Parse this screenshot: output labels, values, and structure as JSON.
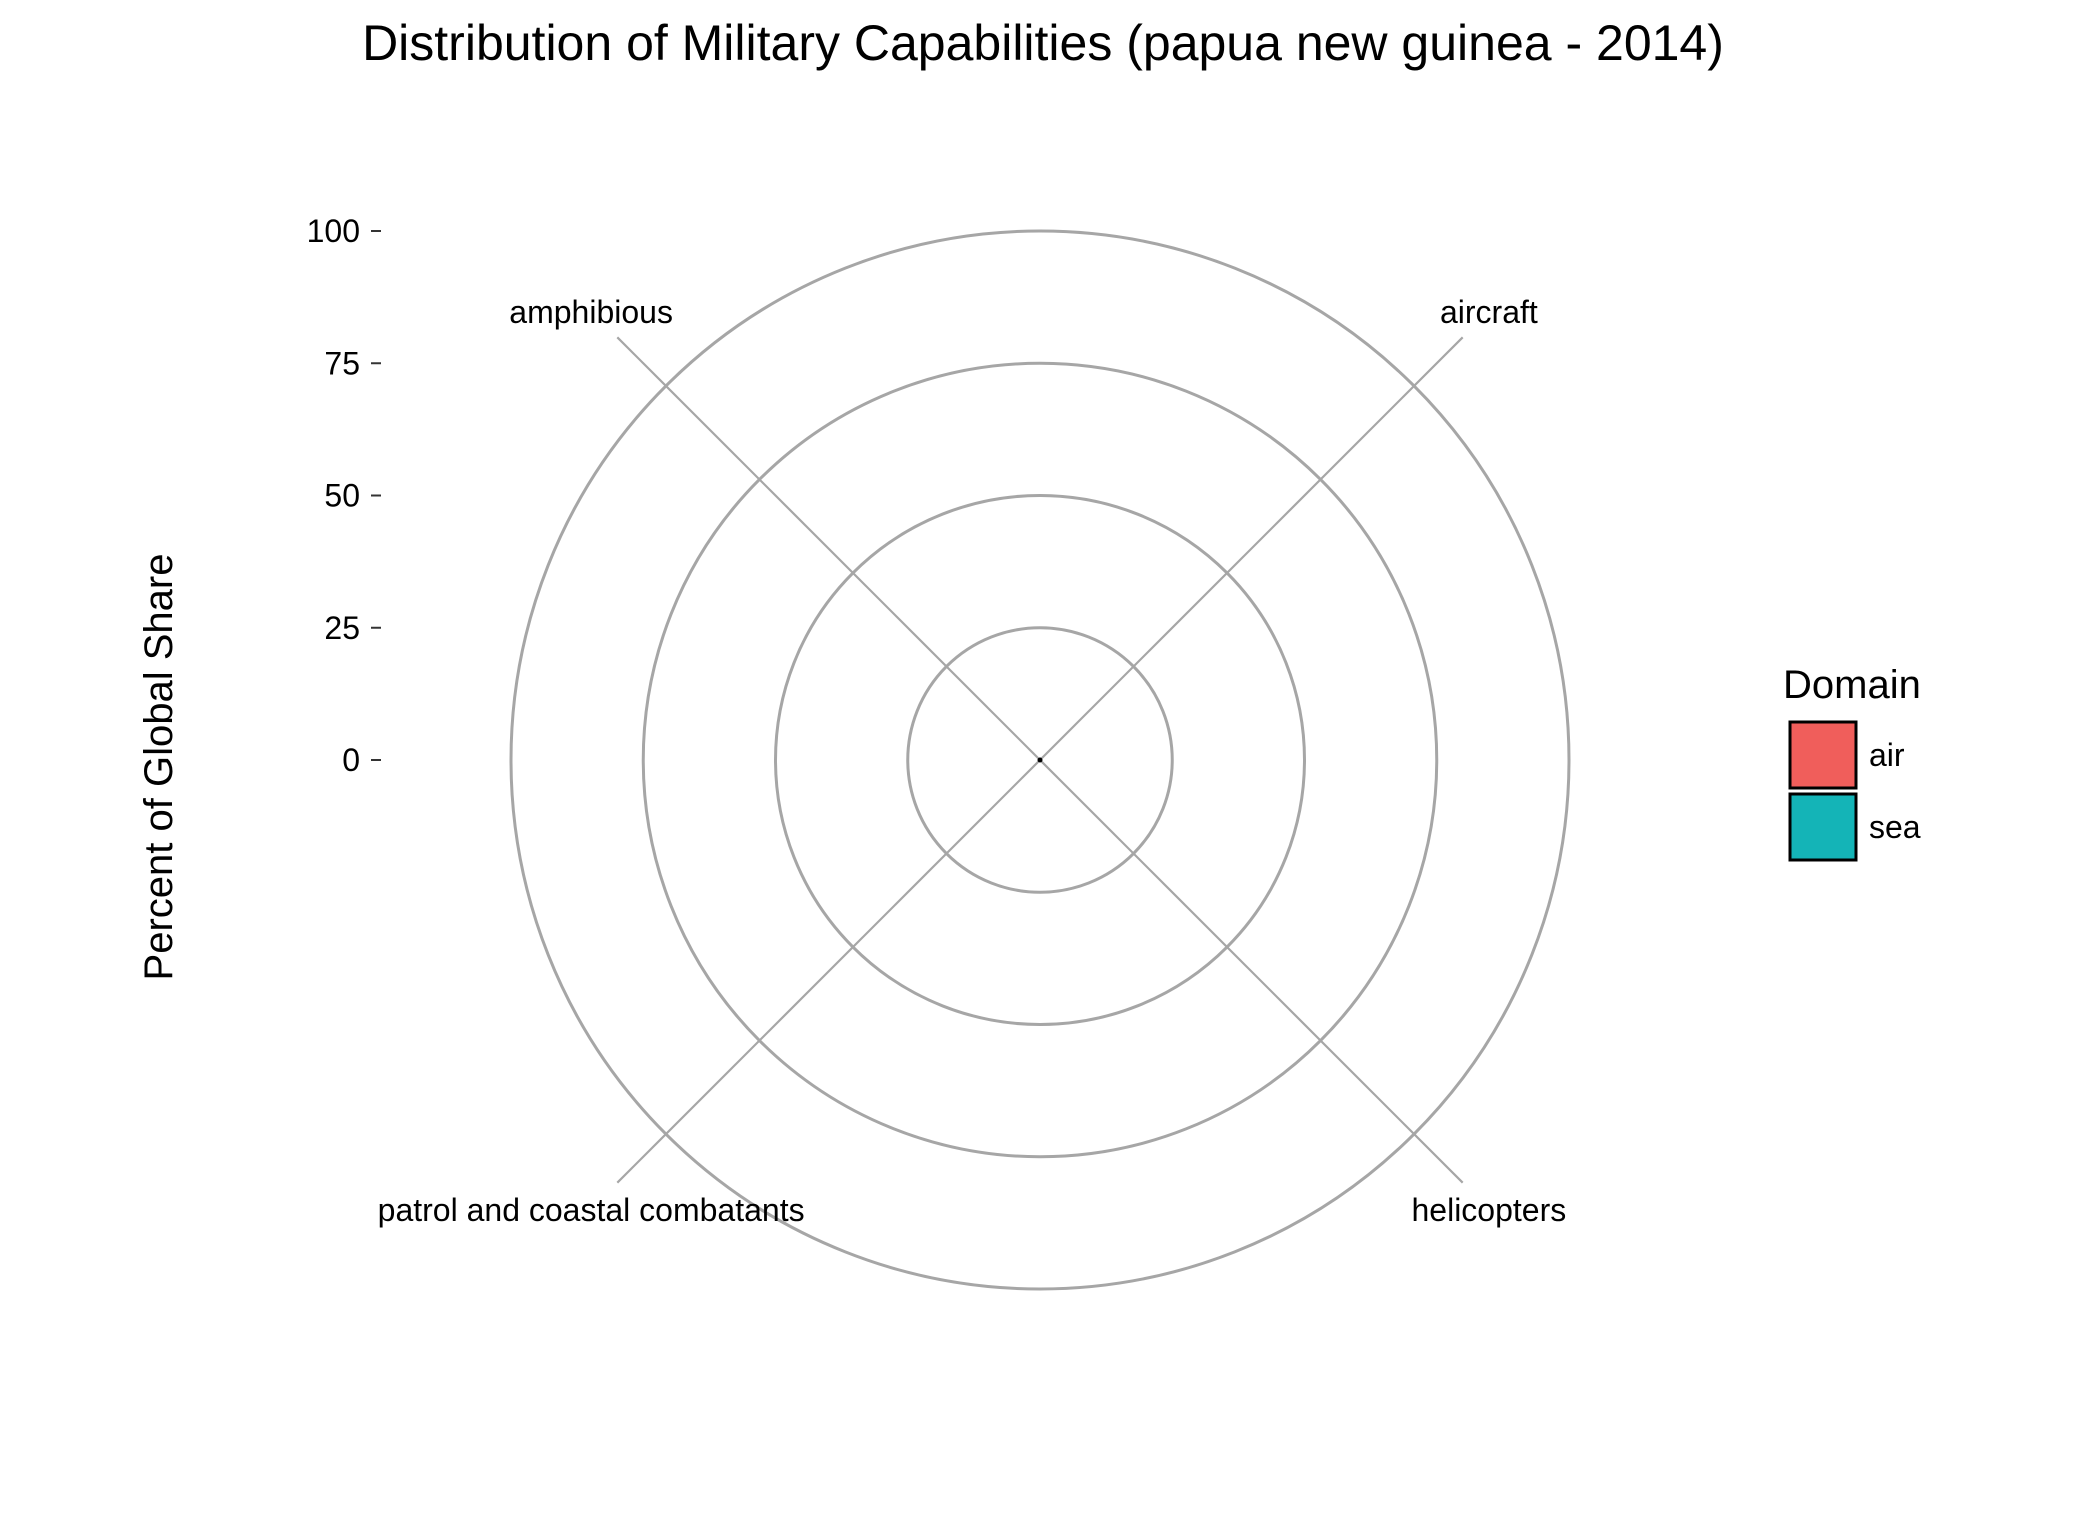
{
  "colors": {
    "grid": "#a6a6a6",
    "text": "#000000",
    "background": "#ffffff",
    "air": "#F05E5B",
    "sea": "#14B4B7"
  },
  "chart_data": {
    "type": "bar",
    "coordinates": "polar",
    "title": "Distribution of Military Capabilities (papua new guinea - 2014)",
    "xlabel": "",
    "ylabel": "Percent of Global Share",
    "ylim": [
      0,
      100
    ],
    "yticks": [
      0,
      25,
      50,
      75,
      100
    ],
    "ytick_labels": [
      "0",
      "25",
      "50",
      "75",
      "100"
    ],
    "grid": true,
    "categories": [
      "aircraft",
      "helicopters",
      "patrol and coastal combatants",
      "amphibious"
    ],
    "series": [
      {
        "name": "air",
        "values": [
          0,
          0,
          null,
          null
        ]
      },
      {
        "name": "sea",
        "values": [
          null,
          null,
          0,
          0
        ]
      }
    ],
    "legend": {
      "title": "Domain",
      "position": "right",
      "entries": [
        "air",
        "sea"
      ]
    }
  }
}
